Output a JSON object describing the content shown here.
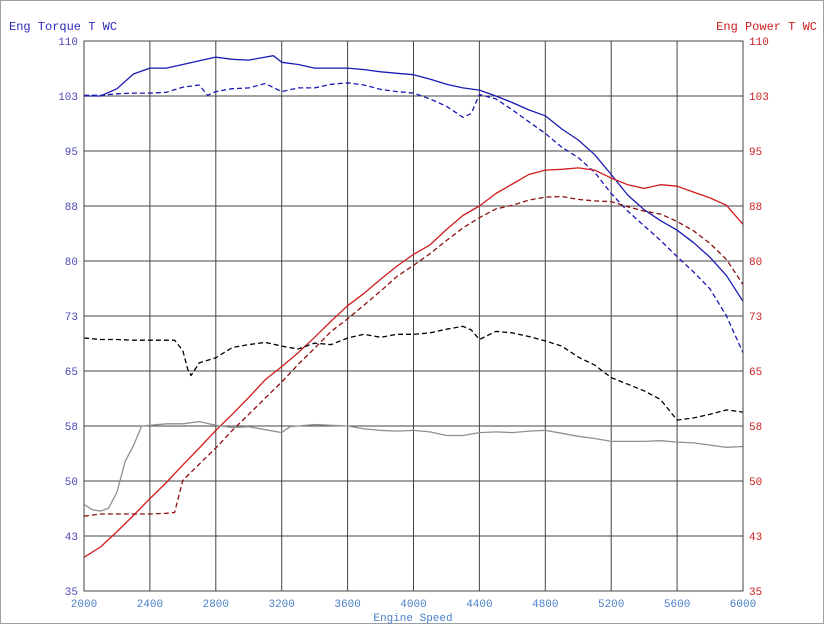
{
  "chart_data": {
    "type": "line",
    "left_axis_title": "Eng Torque T WC",
    "right_axis_title": "Eng Power T WC",
    "xlabel": "Engine Speed",
    "xlim": [
      2000,
      6000
    ],
    "ylim": [
      35,
      110
    ],
    "x_ticks": [
      "2000",
      "2400",
      "2800",
      "3200",
      "3600",
      "4000",
      "4400",
      "4800",
      "5200",
      "5600",
      "6000"
    ],
    "y_ticks": [
      "35",
      "43",
      "50",
      "58",
      "65",
      "73",
      "80",
      "88",
      "95",
      "103",
      "110"
    ],
    "y_tick_values": [
      35,
      42.5,
      50,
      57.5,
      65,
      72.5,
      80,
      87.5,
      95,
      102.5,
      110
    ],
    "grid": true,
    "colors": {
      "torque": "#1a1ab4",
      "power": "#d01c1c",
      "power_dashed": "#8c1010",
      "black": "#000000",
      "gray": "#909090",
      "grid": "#444444",
      "left_ticks": "#4a4ab8",
      "right_ticks": "#cc2020",
      "x_ticks": "#4a80c8"
    },
    "series": [
      {
        "name": "Torque (solid)",
        "color": "#1a1ab4",
        "dash": false,
        "x": [
          2000,
          2100,
          2200,
          2300,
          2400,
          2500,
          2600,
          2700,
          2800,
          2900,
          3000,
          3100,
          3150,
          3200,
          3300,
          3400,
          3500,
          3600,
          3700,
          3800,
          3900,
          4000,
          4100,
          4200,
          4300,
          4400,
          4500,
          4600,
          4700,
          4800,
          4900,
          5000,
          5100,
          5200,
          5300,
          5400,
          5500,
          5600,
          5700,
          5800,
          5900,
          6000
        ],
        "y": [
          102.5,
          102.5,
          103.5,
          105.5,
          106.3,
          106.3,
          106.8,
          107.3,
          107.8,
          107.5,
          107.4,
          107.8,
          108,
          107.1,
          106.8,
          106.3,
          106.3,
          106.3,
          106.1,
          105.8,
          105.6,
          105.4,
          104.8,
          104.1,
          103.6,
          103.3,
          102.5,
          101.6,
          100.6,
          99.8,
          98,
          96.5,
          94.5,
          91.8,
          89,
          87,
          85.5,
          84.2,
          82.5,
          80.5,
          78,
          74.5
        ]
      },
      {
        "name": "Torque (dashed)",
        "color": "#1a1ab4",
        "dash": true,
        "x": [
          2000,
          2100,
          2200,
          2300,
          2400,
          2500,
          2600,
          2700,
          2750,
          2800,
          2900,
          3000,
          3100,
          3200,
          3300,
          3400,
          3500,
          3600,
          3700,
          3800,
          3900,
          4000,
          4100,
          4200,
          4300,
          4350,
          4400,
          4500,
          4600,
          4700,
          4800,
          4900,
          5000,
          5100,
          5200,
          5300,
          5400,
          5500,
          5600,
          5700,
          5800,
          5900,
          6000
        ],
        "y": [
          102.6,
          102.6,
          102.8,
          102.9,
          102.9,
          103,
          103.7,
          104,
          102.6,
          103.1,
          103.5,
          103.6,
          104.2,
          103.1,
          103.6,
          103.6,
          104.1,
          104.3,
          104,
          103.4,
          103.1,
          102.9,
          102.1,
          101.1,
          99.6,
          100.1,
          102.7,
          102.1,
          100.6,
          99,
          97.4,
          95.5,
          94.1,
          92.1,
          89.2,
          86.8,
          84.8,
          82.8,
          80.6,
          78.5,
          76.2,
          72.5,
          67.5
        ]
      },
      {
        "name": "Power (solid)",
        "color": "#d01c1c",
        "dash": false,
        "x": [
          2000,
          2100,
          2200,
          2300,
          2400,
          2500,
          2600,
          2700,
          2800,
          2900,
          3000,
          3100,
          3200,
          3300,
          3400,
          3500,
          3600,
          3700,
          3800,
          3900,
          4000,
          4100,
          4200,
          4300,
          4400,
          4500,
          4600,
          4700,
          4800,
          4900,
          5000,
          5100,
          5200,
          5300,
          5400,
          5500,
          5600,
          5700,
          5800,
          5900,
          6000
        ],
        "y": [
          39.6,
          41,
          43.1,
          45.3,
          47.6,
          49.8,
          52.2,
          54.5,
          56.9,
          59.1,
          61.4,
          63.8,
          65.6,
          67.5,
          69.6,
          71.8,
          73.9,
          75.6,
          77.5,
          79.3,
          80.9,
          82.2,
          84.3,
          86.2,
          87.5,
          89.2,
          90.5,
          91.8,
          92.4,
          92.5,
          92.7,
          92.4,
          91.3,
          90.4,
          89.9,
          90.4,
          90.2,
          89.4,
          88.6,
          87.6,
          85
        ]
      },
      {
        "name": "Power (dashed)",
        "color": "#8c1010",
        "dash": true,
        "x": [
          2000,
          2100,
          2200,
          2300,
          2400,
          2500,
          2550,
          2600,
          2700,
          2800,
          2900,
          3000,
          3100,
          3200,
          3300,
          3400,
          3500,
          3600,
          3700,
          3800,
          3900,
          4000,
          4100,
          4200,
          4300,
          4400,
          4500,
          4600,
          4700,
          4800,
          4900,
          5000,
          5100,
          5200,
          5300,
          5400,
          5500,
          5600,
          5700,
          5800,
          5900,
          6000
        ],
        "y": [
          45.2,
          45.5,
          45.5,
          45.5,
          45.5,
          45.6,
          45.7,
          50.1,
          52.3,
          54.5,
          56.9,
          59.1,
          61.3,
          63.5,
          65.9,
          68.1,
          70.4,
          72.1,
          74,
          75.9,
          77.9,
          79.4,
          81,
          82.8,
          84.5,
          85.9,
          87.1,
          87.6,
          88.3,
          88.7,
          88.8,
          88.4,
          88.2,
          88.1,
          87.4,
          86.8,
          86.4,
          85.4,
          84.1,
          82.4,
          80.2,
          76.8
        ]
      },
      {
        "name": "Black (dashed)",
        "color": "#000000",
        "dash": true,
        "x": [
          2000,
          2100,
          2200,
          2300,
          2400,
          2500,
          2550,
          2600,
          2630,
          2650,
          2700,
          2800,
          2900,
          3000,
          3100,
          3200,
          3300,
          3400,
          3500,
          3600,
          3700,
          3800,
          3900,
          4000,
          4100,
          4200,
          4300,
          4350,
          4400,
          4500,
          4600,
          4700,
          4800,
          4900,
          5000,
          5100,
          5200,
          5300,
          5400,
          5500,
          5600,
          5700,
          5800,
          5900,
          6000
        ],
        "y": [
          69.5,
          69.3,
          69.3,
          69.2,
          69.2,
          69.2,
          69.2,
          67.8,
          65.2,
          64.4,
          66.1,
          66.8,
          68.2,
          68.6,
          68.9,
          68.4,
          68,
          68.8,
          68.6,
          69.5,
          70,
          69.6,
          70,
          70,
          70.2,
          70.7,
          71.1,
          70.6,
          69.3,
          70.4,
          70.2,
          69.7,
          69.1,
          68.4,
          66.9,
          65.8,
          64.1,
          63.2,
          62.3,
          61.1,
          58.3,
          58.6,
          59.1,
          59.7,
          59.4
        ]
      },
      {
        "name": "Gray (solid)",
        "color": "#909090",
        "dash": false,
        "x": [
          2000,
          2050,
          2100,
          2150,
          2200,
          2250,
          2300,
          2350,
          2400,
          2500,
          2600,
          2700,
          2800,
          2900,
          3000,
          3100,
          3200,
          3250,
          3300,
          3400,
          3500,
          3600,
          3700,
          3800,
          3900,
          4000,
          4100,
          4200,
          4300,
          4400,
          4500,
          4600,
          4700,
          4800,
          4900,
          5000,
          5100,
          5200,
          5300,
          5400,
          5500,
          5600,
          5700,
          5800,
          5900,
          6000
        ],
        "y": [
          46.8,
          46.1,
          45.9,
          46.3,
          48.5,
          52.7,
          54.8,
          57.5,
          57.6,
          57.8,
          57.8,
          58.1,
          57.6,
          57.3,
          57.4,
          57,
          56.6,
          57.4,
          57.5,
          57.7,
          57.6,
          57.5,
          57.1,
          56.9,
          56.8,
          56.9,
          56.7,
          56.2,
          56.2,
          56.6,
          56.7,
          56.6,
          56.8,
          56.9,
          56.5,
          56.1,
          55.8,
          55.4,
          55.4,
          55.4,
          55.5,
          55.3,
          55.2,
          54.9,
          54.6,
          54.7
        ]
      }
    ]
  }
}
